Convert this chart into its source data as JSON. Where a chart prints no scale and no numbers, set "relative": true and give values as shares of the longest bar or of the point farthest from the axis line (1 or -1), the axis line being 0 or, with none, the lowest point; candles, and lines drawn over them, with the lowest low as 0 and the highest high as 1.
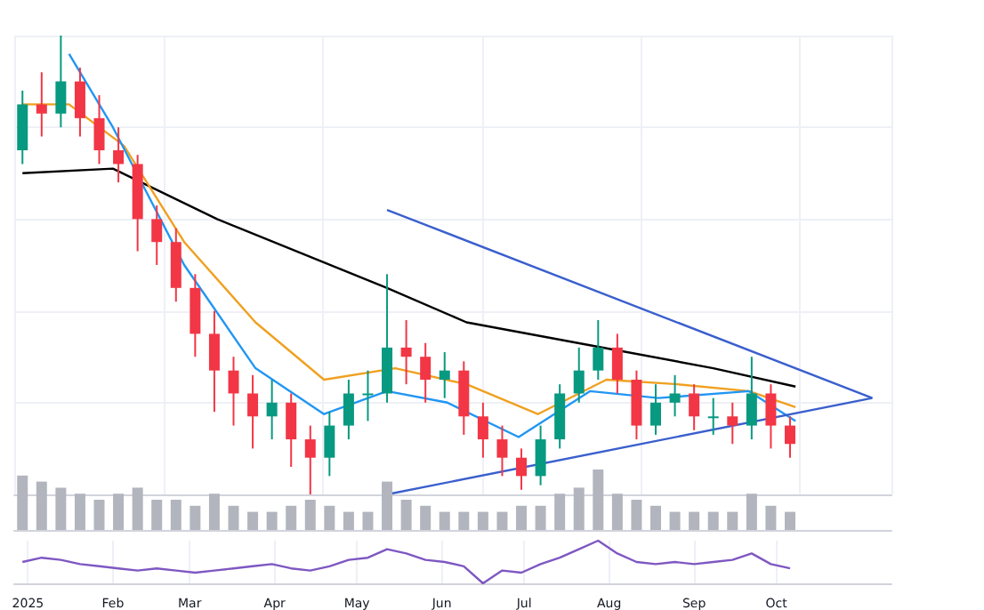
{
  "chart_data": [
    {
      "type": "candlestick",
      "relative": true,
      "grid": true,
      "tick_labels": false,
      "x": [
        "2024-12-30",
        "2025-01-06",
        "2025-01-13",
        "2025-01-20",
        "2025-01-27",
        "2025-02-03",
        "2025-02-10",
        "2025-02-17",
        "2025-02-24",
        "2025-03-03",
        "2025-03-10",
        "2025-03-17",
        "2025-03-24",
        "2025-03-31",
        "2025-04-07",
        "2025-04-14",
        "2025-04-21",
        "2025-04-28",
        "2025-05-05",
        "2025-05-12",
        "2025-05-19",
        "2025-05-26",
        "2025-06-02",
        "2025-06-09",
        "2025-06-16",
        "2025-06-23",
        "2025-06-30",
        "2025-07-07",
        "2025-07-14",
        "2025-07-21",
        "2025-07-28",
        "2025-08-04",
        "2025-08-11",
        "2025-08-18",
        "2025-08-25",
        "2025-09-01",
        "2025-09-08",
        "2025-09-15",
        "2025-09-22",
        "2025-09-29",
        "2025-10-06"
      ],
      "ohlc": [
        [
          0.75,
          0.88,
          0.72,
          0.85
        ],
        [
          0.85,
          0.92,
          0.78,
          0.83
        ],
        [
          0.83,
          1.0,
          0.8,
          0.9
        ],
        [
          0.9,
          0.93,
          0.78,
          0.82
        ],
        [
          0.82,
          0.87,
          0.72,
          0.75
        ],
        [
          0.75,
          0.8,
          0.68,
          0.72
        ],
        [
          0.72,
          0.74,
          0.53,
          0.6
        ],
        [
          0.6,
          0.63,
          0.5,
          0.55
        ],
        [
          0.55,
          0.58,
          0.42,
          0.45
        ],
        [
          0.45,
          0.48,
          0.3,
          0.35
        ],
        [
          0.35,
          0.4,
          0.18,
          0.27
        ],
        [
          0.27,
          0.3,
          0.15,
          0.22
        ],
        [
          0.22,
          0.26,
          0.1,
          0.17
        ],
        [
          0.17,
          0.25,
          0.12,
          0.2
        ],
        [
          0.2,
          0.22,
          0.06,
          0.12
        ],
        [
          0.12,
          0.15,
          0.0,
          0.08
        ],
        [
          0.08,
          0.18,
          0.04,
          0.15
        ],
        [
          0.15,
          0.25,
          0.12,
          0.22
        ],
        [
          0.22,
          0.27,
          0.16,
          0.22
        ],
        [
          0.22,
          0.48,
          0.2,
          0.32
        ],
        [
          0.32,
          0.38,
          0.24,
          0.3
        ],
        [
          0.3,
          0.33,
          0.2,
          0.25
        ],
        [
          0.25,
          0.31,
          0.21,
          0.27
        ],
        [
          0.27,
          0.29,
          0.13,
          0.17
        ],
        [
          0.17,
          0.2,
          0.08,
          0.12
        ],
        [
          0.12,
          0.15,
          0.04,
          0.08
        ],
        [
          0.08,
          0.1,
          0.01,
          0.04
        ],
        [
          0.04,
          0.15,
          0.02,
          0.12
        ],
        [
          0.12,
          0.24,
          0.1,
          0.22
        ],
        [
          0.22,
          0.32,
          0.2,
          0.27
        ],
        [
          0.27,
          0.38,
          0.25,
          0.32
        ],
        [
          0.32,
          0.35,
          0.22,
          0.25
        ],
        [
          0.25,
          0.27,
          0.12,
          0.15
        ],
        [
          0.15,
          0.24,
          0.13,
          0.2
        ],
        [
          0.2,
          0.26,
          0.17,
          0.22
        ],
        [
          0.22,
          0.24,
          0.14,
          0.17
        ],
        [
          0.17,
          0.21,
          0.13,
          0.17
        ],
        [
          0.17,
          0.2,
          0.11,
          0.15
        ],
        [
          0.15,
          0.3,
          0.12,
          0.22
        ],
        [
          0.22,
          0.24,
          0.1,
          0.15
        ],
        [
          0.15,
          0.17,
          0.08,
          0.11
        ]
      ],
      "series": [
        {
          "type": "line",
          "color": "#000000",
          "x": [
            "2024-12-30",
            "2025-02-01",
            "2025-03-11",
            "2025-05-12",
            "2025-06-10",
            "2025-07-25",
            "2025-09-08",
            "2025-10-08"
          ],
          "values": [
            0.7,
            0.71,
            0.6,
            0.45,
            0.375,
            0.325,
            0.275,
            0.235
          ]
        },
        {
          "type": "line",
          "color": "#f0a020",
          "x": [
            "2024-12-30",
            "2025-01-16",
            "2025-02-05",
            "2025-02-27",
            "2025-03-25",
            "2025-04-19",
            "2025-05-15",
            "2025-06-10",
            "2025-07-06",
            "2025-07-31",
            "2025-08-26",
            "2025-09-21",
            "2025-10-08"
          ],
          "values": [
            0.85,
            0.85,
            0.76,
            0.55,
            0.375,
            0.25,
            0.275,
            0.24,
            0.175,
            0.25,
            0.24,
            0.225,
            0.19
          ]
        },
        {
          "type": "line",
          "color": "#2196f3",
          "x": [
            "2025-01-16",
            "2025-02-01",
            "2025-02-27",
            "2025-03-25",
            "2025-04-19",
            "2025-05-12",
            "2025-06-03",
            "2025-06-29",
            "2025-07-25",
            "2025-08-19",
            "2025-09-21",
            "2025-10-08"
          ],
          "values": [
            0.96,
            0.8,
            0.5,
            0.275,
            0.175,
            0.225,
            0.2,
            0.125,
            0.225,
            0.21,
            0.225,
            0.16
          ]
        },
        {
          "type": "line",
          "color": "#3a5fcd",
          "x": [
            "2025-05-12",
            "2025-11-05"
          ],
          "values": [
            0.62,
            0.21
          ]
        },
        {
          "type": "line",
          "color": "#3a5fcd",
          "x": [
            "2025-05-12",
            "2025-11-05"
          ],
          "values": [
            0,
            0.21
          ]
        }
      ],
      "xlim": [
        "2024-12-27",
        "2025-11-12"
      ]
    },
    {
      "type": "bar",
      "relative": true,
      "tick_labels": false,
      "x": [
        "2024-12-30",
        "2025-01-06",
        "2025-01-13",
        "2025-01-20",
        "2025-01-27",
        "2025-02-03",
        "2025-02-10",
        "2025-02-17",
        "2025-02-24",
        "2025-03-03",
        "2025-03-10",
        "2025-03-17",
        "2025-03-24",
        "2025-03-31",
        "2025-04-07",
        "2025-04-14",
        "2025-04-21",
        "2025-04-28",
        "2025-05-05",
        "2025-05-12",
        "2025-05-19",
        "2025-05-26",
        "2025-06-02",
        "2025-06-09",
        "2025-06-16",
        "2025-06-23",
        "2025-06-30",
        "2025-07-07",
        "2025-07-14",
        "2025-07-21",
        "2025-07-28",
        "2025-08-04",
        "2025-08-11",
        "2025-08-18",
        "2025-08-25",
        "2025-09-01",
        "2025-09-08",
        "2025-09-15",
        "2025-09-22",
        "2025-09-29",
        "2025-10-06"
      ],
      "series": [
        {
          "color": "#b2b5be",
          "values": [
            0.9,
            0.8,
            0.7,
            0.6,
            0.5,
            0.6,
            0.7,
            0.5,
            0.5,
            0.4,
            0.6,
            0.4,
            0.3,
            0.3,
            0.4,
            0.5,
            0.4,
            0.3,
            0.3,
            0.8,
            0.5,
            0.4,
            0.3,
            0.3,
            0.3,
            0.3,
            0.4,
            0.4,
            0.6,
            0.7,
            1,
            0.6,
            0.5,
            0.4,
            0.3,
            0.3,
            0.3,
            0.3,
            0.6,
            0.4,
            0.3
          ]
        }
      ],
      "xlim": [
        "2024-12-27",
        "2025-11-12"
      ]
    },
    {
      "type": "line",
      "relative": true,
      "grid": "x",
      "tick_labels": "x",
      "x": [
        "2024-12-30",
        "2025-01-06",
        "2025-01-13",
        "2025-01-20",
        "2025-01-27",
        "2025-02-03",
        "2025-02-10",
        "2025-02-17",
        "2025-02-24",
        "2025-03-03",
        "2025-03-10",
        "2025-03-17",
        "2025-03-24",
        "2025-03-31",
        "2025-04-07",
        "2025-04-14",
        "2025-04-21",
        "2025-04-28",
        "2025-05-05",
        "2025-05-12",
        "2025-05-19",
        "2025-05-26",
        "2025-06-02",
        "2025-06-09",
        "2025-06-16",
        "2025-06-23",
        "2025-06-30",
        "2025-07-07",
        "2025-07-14",
        "2025-07-21",
        "2025-07-28",
        "2025-08-04",
        "2025-08-11",
        "2025-08-18",
        "2025-08-25",
        "2025-09-01",
        "2025-09-08",
        "2025-09-15",
        "2025-09-22",
        "2025-09-29",
        "2025-10-06"
      ],
      "series": [
        {
          "color": "#7e57c2",
          "values": [
            0.5,
            0.6,
            0.55,
            0.45,
            0.4,
            0.35,
            0.3,
            0.35,
            0.3,
            0.25,
            0.3,
            0.35,
            0.4,
            0.45,
            0.35,
            0.3,
            0.4,
            0.55,
            0.6,
            0.8,
            0.7,
            0.55,
            0.5,
            0.4,
            0,
            0.3,
            0.25,
            0.45,
            0.6,
            0.8,
            1,
            0.7,
            0.5,
            0.45,
            0.5,
            0.45,
            0.5,
            0.55,
            0.7,
            0.45,
            0.35
          ]
        }
      ],
      "xlim": [
        "2024-12-27",
        "2025-11-12"
      ],
      "xticks": [
        {
          "value": "2025-01-01",
          "label": "2025"
        },
        {
          "value": "2025-02-01",
          "label": "Feb"
        },
        {
          "value": "2025-03-01",
          "label": "Mar"
        },
        {
          "value": "2025-04-01",
          "label": "Apr"
        },
        {
          "value": "2025-05-01",
          "label": "May"
        },
        {
          "value": "2025-06-01",
          "label": "Jun"
        },
        {
          "value": "2025-07-01",
          "label": "Jul"
        },
        {
          "value": "2025-08-01",
          "label": "Aug"
        },
        {
          "value": "2025-09-01",
          "label": "Sep"
        },
        {
          "value": "2025-10-01",
          "label": "Oct"
        }
      ]
    }
  ]
}
